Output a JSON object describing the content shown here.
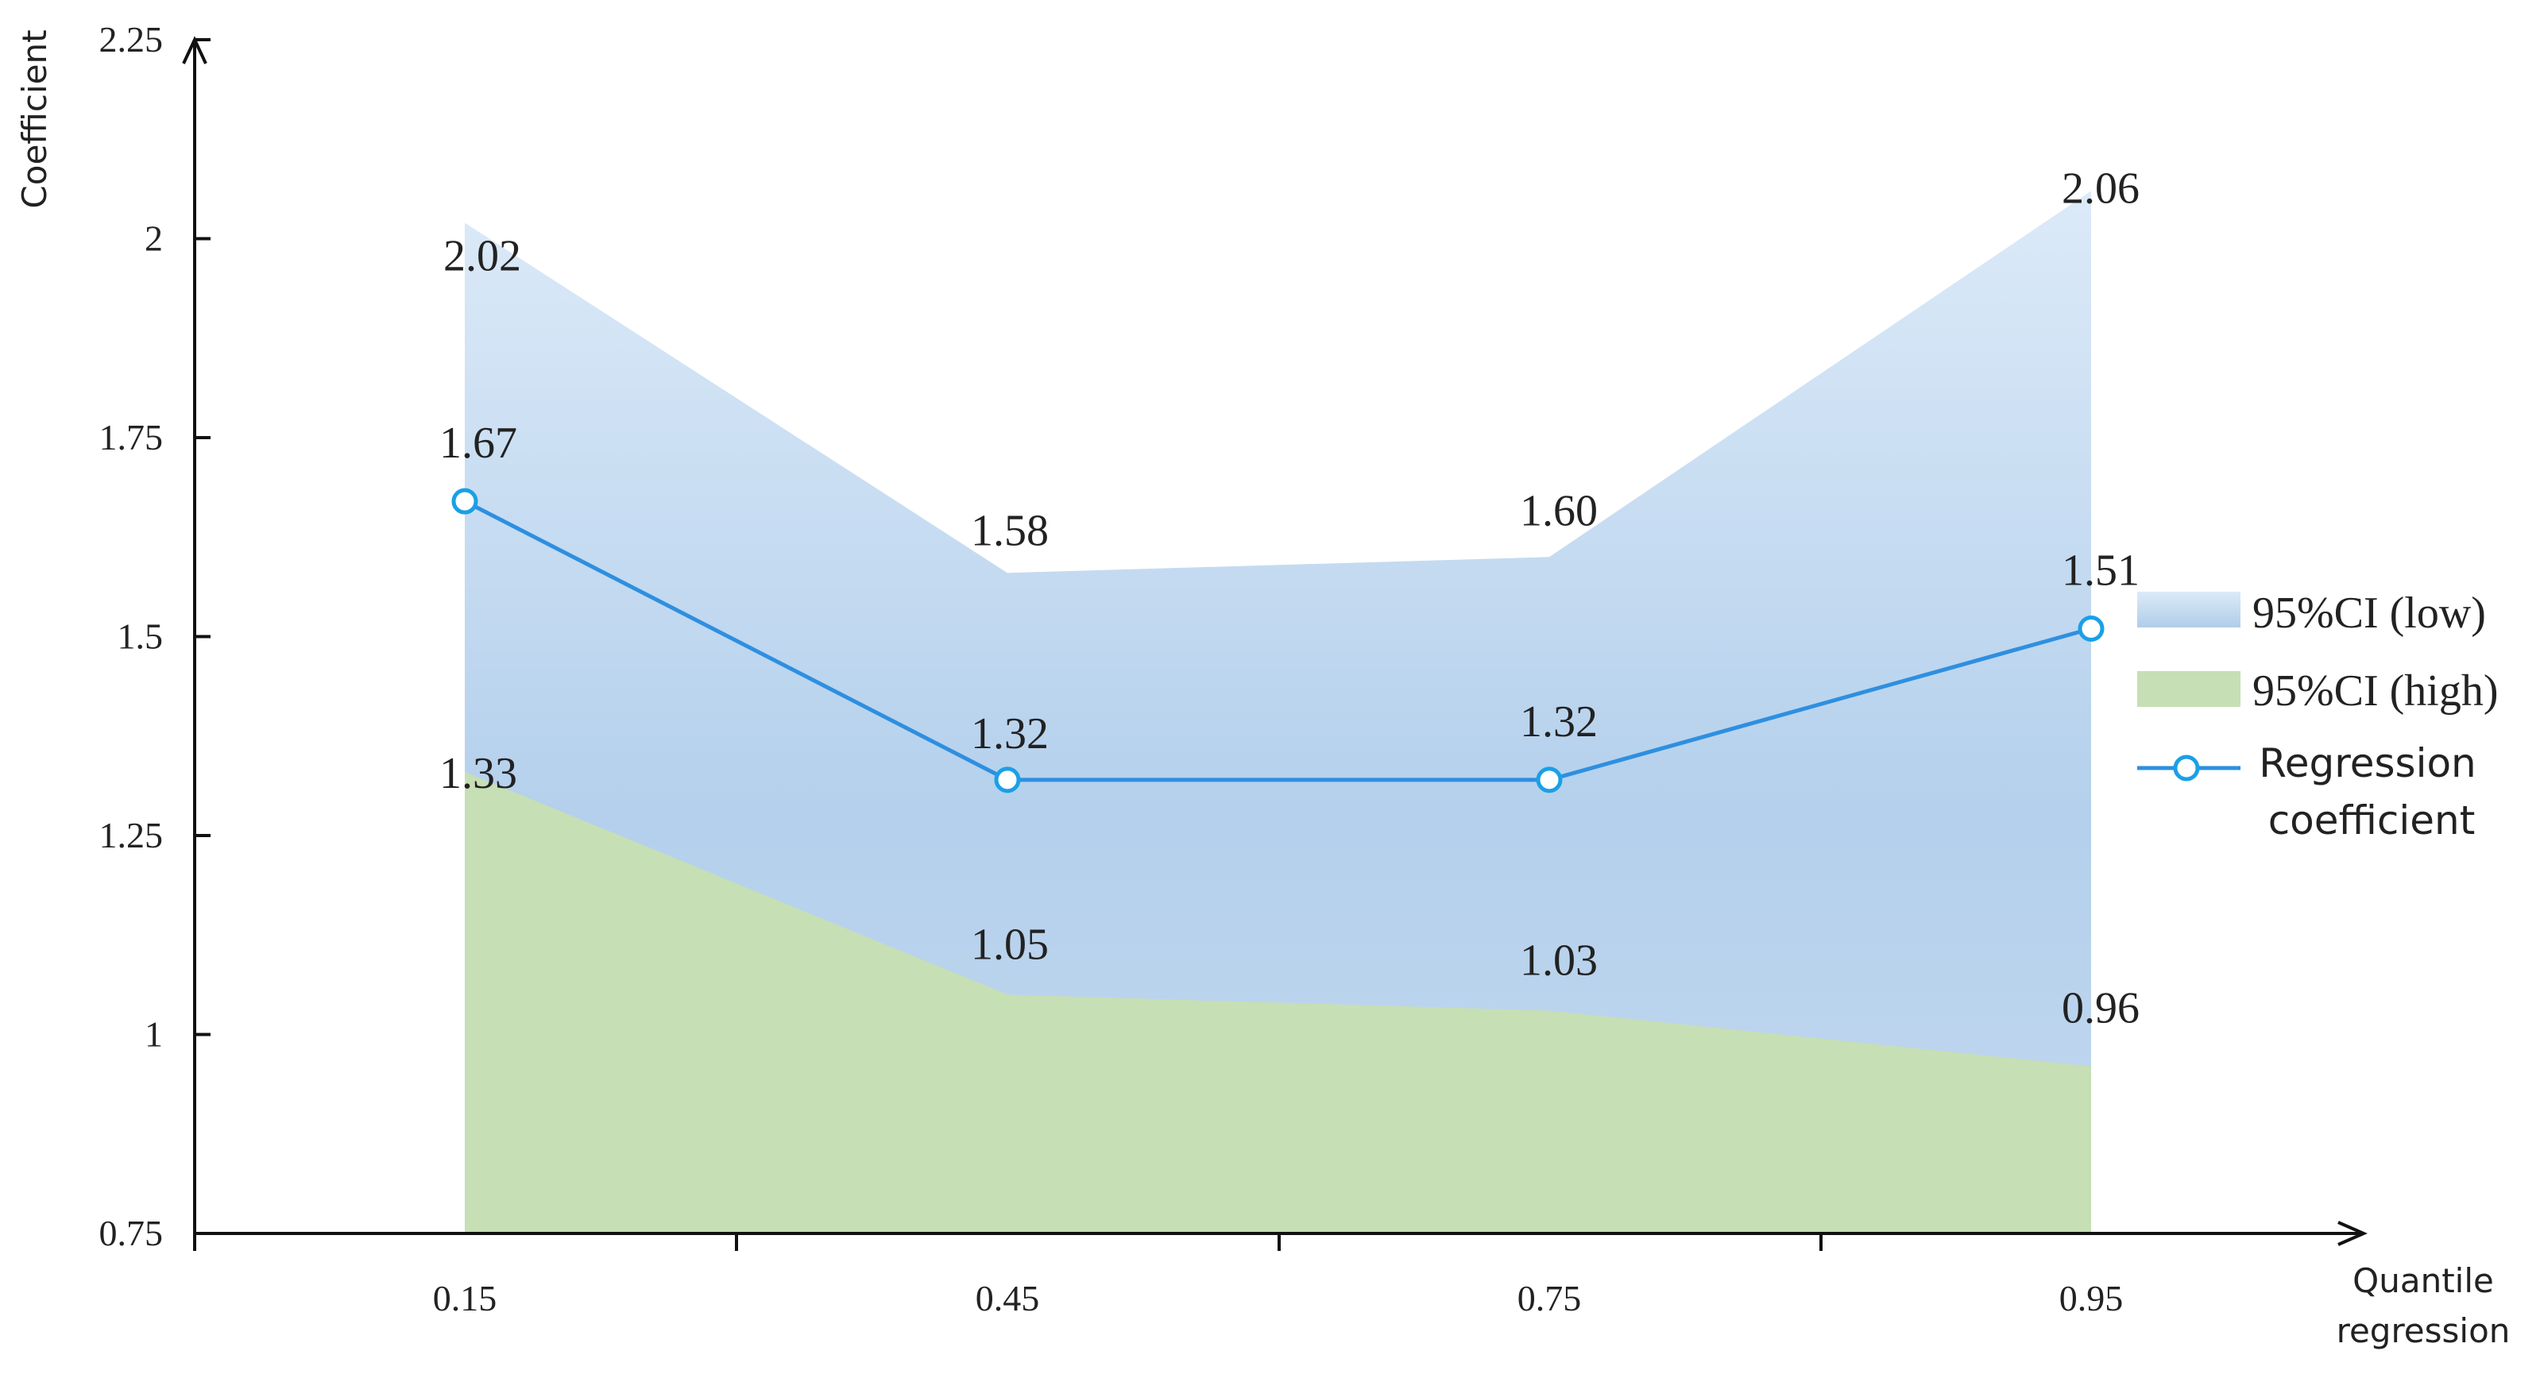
{
  "chart_data": {
    "type": "area",
    "x": [
      "0.15",
      "0.45",
      "0.75",
      "0.95"
    ],
    "ylim": [
      0.75,
      2.25
    ],
    "y_ticks": [
      "0.75",
      "1",
      "1.25",
      "1.5",
      "1.75",
      "2",
      "2.25"
    ],
    "y_tick_values": [
      0.75,
      1.0,
      1.25,
      1.5,
      1.75,
      2.0,
      2.25
    ],
    "xlabel": [
      "Quantile",
      "regression"
    ],
    "ylabel": "Coefficient",
    "legend_position": "right",
    "grid": false,
    "series": [
      {
        "name": "95%CI (low)",
        "kind": "area",
        "values": [
          2.02,
          1.58,
          1.6,
          2.06
        ],
        "labels": [
          "2.02",
          "1.58",
          "1.60",
          "2.06"
        ],
        "color": "#bdd5ee"
      },
      {
        "name": "95%CI (high)",
        "kind": "area",
        "values": [
          1.33,
          1.05,
          1.03,
          0.96
        ],
        "labels": [
          "1.33",
          "1.05",
          "1.03",
          "0.96"
        ],
        "color": "#c6dfb4"
      },
      {
        "name": "Regression coefficient",
        "name_lines": [
          "Regression",
          "coefficient"
        ],
        "kind": "line",
        "values": [
          1.67,
          1.32,
          1.32,
          1.51
        ],
        "labels": [
          "1.67",
          "1.32",
          "1.32",
          "1.51"
        ],
        "color": "#2e8fe0"
      }
    ]
  }
}
